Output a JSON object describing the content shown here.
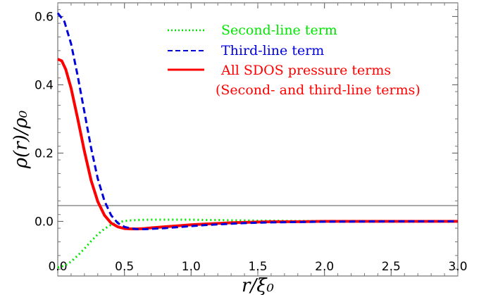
{
  "chart_data": {
    "type": "line",
    "xlabel": "r/ξ₀",
    "ylabel": "ρ(r)/ρ₀",
    "xlim": [
      0,
      3.0
    ],
    "ylim": [
      -0.16,
      0.64
    ],
    "x_ticks": [
      "0.0",
      "0.5",
      "1.0",
      "1.5",
      "2.0",
      "2.5",
      "3.0"
    ],
    "y_ticks": [
      "0.0",
      "0.2",
      "0.4",
      "0.6"
    ],
    "grid": false,
    "legend_position": "top-right",
    "legend": [
      {
        "key": "second",
        "label": "Second-line term",
        "color": "#00e600",
        "dash": "dotted"
      },
      {
        "key": "third",
        "label": "Third-line term",
        "color": "#0000dd",
        "dash": "dashed"
      },
      {
        "key": "all",
        "label": "All SDOS pressure terms",
        "label2": "(Second- and third-line terms)",
        "color": "#ff0000",
        "dash": "solid"
      }
    ],
    "series": [
      {
        "name": "Second-line term",
        "color": "#00e600",
        "x": [
          0,
          0.05,
          0.1,
          0.15,
          0.2,
          0.25,
          0.3,
          0.35,
          0.4,
          0.45,
          0.5,
          0.55,
          0.6,
          0.7,
          0.8,
          0.9,
          1.0,
          1.1,
          1.2,
          1.3,
          1.4,
          1.5,
          1.6,
          1.8,
          2.0,
          2.5,
          3.0
        ],
        "y": [
          -0.135,
          -0.13,
          -0.118,
          -0.1,
          -0.08,
          -0.058,
          -0.038,
          -0.022,
          -0.01,
          -0.003,
          0.001,
          0.003,
          0.004,
          0.005,
          0.005,
          0.005,
          0.005,
          0.004,
          0.004,
          0.003,
          0.003,
          0.002,
          0.002,
          0.001,
          0.001,
          0.0,
          0.0
        ]
      },
      {
        "name": "Third-line term",
        "color": "#0000dd",
        "x": [
          0,
          0.05,
          0.1,
          0.15,
          0.2,
          0.25,
          0.3,
          0.35,
          0.4,
          0.45,
          0.5,
          0.55,
          0.6,
          0.65,
          0.7,
          0.8,
          0.9,
          1.0,
          1.1,
          1.2,
          1.3,
          1.4,
          1.5,
          1.6,
          1.8,
          2.0,
          2.5,
          3.0
        ],
        "y": [
          0.61,
          0.585,
          0.52,
          0.425,
          0.32,
          0.215,
          0.125,
          0.06,
          0.018,
          -0.005,
          -0.016,
          -0.021,
          -0.023,
          -0.023,
          -0.022,
          -0.02,
          -0.017,
          -0.014,
          -0.011,
          -0.009,
          -0.007,
          -0.005,
          -0.004,
          -0.003,
          -0.002,
          -0.001,
          0.0,
          0.0
        ]
      },
      {
        "name": "All SDOS pressure terms",
        "color": "#ff0000",
        "x": [
          0,
          0.03,
          0.06,
          0.1,
          0.15,
          0.2,
          0.25,
          0.3,
          0.35,
          0.4,
          0.45,
          0.5,
          0.55,
          0.6,
          0.65,
          0.7,
          0.8,
          0.9,
          1.0,
          1.1,
          1.2,
          1.3,
          1.4,
          1.5,
          1.6,
          1.8,
          2.0,
          2.5,
          3.0
        ],
        "y": [
          0.475,
          0.47,
          0.445,
          0.39,
          0.3,
          0.205,
          0.12,
          0.058,
          0.018,
          -0.005,
          -0.016,
          -0.021,
          -0.022,
          -0.022,
          -0.021,
          -0.019,
          -0.016,
          -0.013,
          -0.01,
          -0.008,
          -0.006,
          -0.004,
          -0.003,
          -0.002,
          -0.001,
          -0.001,
          0.0,
          0.0,
          0.0
        ]
      }
    ]
  }
}
